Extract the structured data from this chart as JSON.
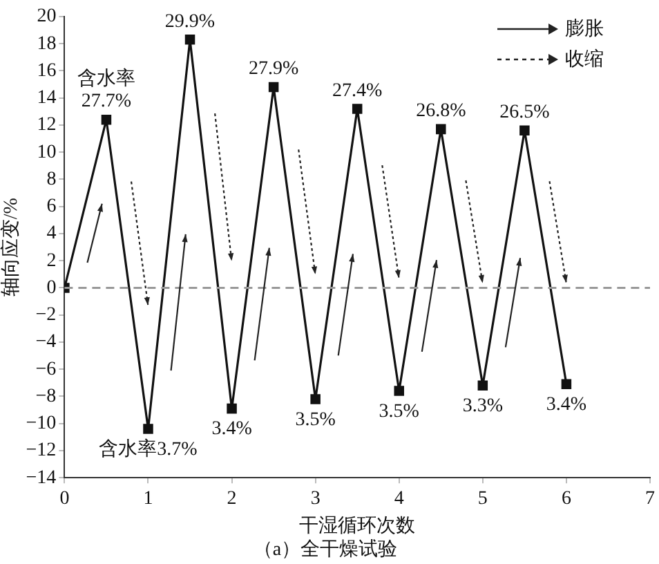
{
  "chart_data": {
    "type": "line",
    "title": "（a）全干燥试验",
    "xlabel": "干湿循环次数",
    "ylabel": "轴向应变/%",
    "x": [
      0,
      0.5,
      1,
      1.5,
      2,
      2.5,
      3,
      3.5,
      4,
      4.5,
      5,
      5.5,
      6
    ],
    "series": [
      {
        "color": "#111111",
        "values": [
          0,
          12.4,
          -10.4,
          18.3,
          -8.9,
          14.8,
          -8.2,
          13.2,
          -7.6,
          11.7,
          -7.2,
          11.6,
          -7.1
        ]
      }
    ],
    "xlim": [
      0,
      7
    ],
    "xticks": [
      0,
      1,
      2,
      3,
      4,
      5,
      6,
      7
    ],
    "ylim": [
      -14,
      20
    ],
    "yticks": [
      -14,
      -12,
      -10,
      -8,
      -6,
      -4,
      -2,
      0,
      2,
      4,
      6,
      8,
      10,
      12,
      14,
      16,
      18,
      20
    ],
    "grid": false,
    "marker": "square",
    "line_style": "solid",
    "ref_lines": [
      {
        "axis": "y",
        "value": 0,
        "color": "#999999",
        "line_style": "dashed"
      }
    ],
    "annotations": [
      {
        "text": "27.7%",
        "x": 0.5,
        "y": 12.4
      },
      {
        "text": "含水率",
        "x": 0.5,
        "y": 12.4
      },
      {
        "text": "29.9%",
        "x": 1.5,
        "y": 18.3
      },
      {
        "text": "27.9%",
        "x": 2.5,
        "y": 14.8
      },
      {
        "text": "27.4%",
        "x": 3.5,
        "y": 13.2
      },
      {
        "text": "26.8%",
        "x": 4.5,
        "y": 11.7
      },
      {
        "text": "26.5%",
        "x": 5.5,
        "y": 11.6
      },
      {
        "text": "含水率3.7%",
        "x": 1,
        "y": -10.4
      },
      {
        "text": "3.4%",
        "x": 2,
        "y": -8.9
      },
      {
        "text": "3.5%",
        "x": 3,
        "y": -8.2
      },
      {
        "text": "3.5%",
        "x": 4,
        "y": -7.6
      },
      {
        "text": "3.3%",
        "x": 5,
        "y": -7.2
      },
      {
        "text": "3.4%",
        "x": 6,
        "y": -7.1
      },
      "膨胀",
      "收缩"
    ]
  }
}
